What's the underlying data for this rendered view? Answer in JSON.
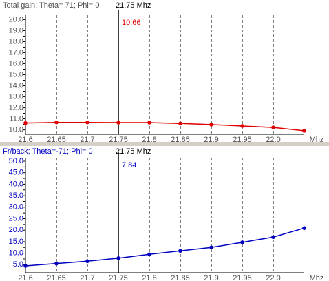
{
  "chart_data": [
    {
      "type": "line",
      "title": "Total gain; Theta= 71; Phi= 0",
      "marker": {
        "x": 21.75,
        "text": "21.75 Mhz",
        "value": 10.66
      },
      "x_unit": "Mhz",
      "x": [
        21.6,
        21.65,
        21.7,
        21.75,
        21.8,
        21.85,
        21.9,
        21.95,
        22.0,
        22.05
      ],
      "series": [
        {
          "name": "Total gain",
          "color": "#e00000",
          "values": [
            10.62,
            10.68,
            10.68,
            10.66,
            10.66,
            10.58,
            10.48,
            10.35,
            10.22,
            9.92
          ]
        }
      ],
      "label_color": "#505050",
      "xlim": [
        21.6,
        22.05
      ],
      "xticks": [
        21.6,
        21.65,
        21.7,
        21.75,
        21.8,
        21.85,
        21.9,
        21.95,
        {
          "value": 22,
          "label": "22.0"
        }
      ],
      "ylim": [
        9.6,
        20.4
      ],
      "yticks": [
        {
          "value": 10,
          "label": "10.0"
        },
        10.5,
        {
          "value": 11,
          "label": "11.0"
        },
        11.5,
        {
          "value": 12,
          "label": "12.0"
        },
        12.5,
        {
          "value": 13,
          "label": "13.0"
        },
        13.5,
        {
          "value": 14,
          "label": "14.0"
        },
        14.5,
        {
          "value": 15,
          "label": "15.0"
        },
        15.5,
        {
          "value": 16,
          "label": "16.0"
        },
        16.5,
        {
          "value": 17,
          "label": "17.0"
        },
        17.5,
        {
          "value": 18,
          "label": "18.0"
        },
        18.5,
        {
          "value": 19,
          "label": "19.0"
        },
        19.5,
        {
          "value": 20,
          "label": "20.0"
        }
      ],
      "grid": true
    },
    {
      "type": "line",
      "title": "Fr/back; Theta=-71; Phi= 0",
      "marker": {
        "x": 21.75,
        "text": "21.75 Mhz",
        "value": 7.84
      },
      "x_unit": "Mhz",
      "x": [
        21.6,
        21.65,
        21.7,
        21.75,
        21.8,
        21.85,
        21.9,
        21.95,
        22.0,
        22.05
      ],
      "series": [
        {
          "name": "Fr/back",
          "color": "#0000c0",
          "values": [
            4.5,
            5.5,
            6.5,
            7.84,
            9.5,
            11.0,
            12.5,
            14.7,
            17.0,
            20.9
          ]
        }
      ],
      "label_color": "#0000c0",
      "xlim": [
        21.6,
        22.05
      ],
      "xticks": [
        21.6,
        21.65,
        21.7,
        21.75,
        21.8,
        21.85,
        21.9,
        21.95,
        {
          "value": 22,
          "label": "22.0"
        }
      ],
      "ylim": [
        1.5,
        51.5
      ],
      "yticks": [
        {
          "value": 5,
          "label": "5.0"
        },
        7.5,
        {
          "value": 10,
          "label": "10.0"
        },
        12.5,
        {
          "value": 15,
          "label": "15.0"
        },
        17.5,
        {
          "value": 20,
          "label": "20.0"
        },
        22.5,
        {
          "value": 25,
          "label": "25.0"
        },
        27.5,
        {
          "value": 30,
          "label": "30.0"
        },
        32.5,
        {
          "value": 35,
          "label": "35.0"
        },
        37.5,
        {
          "value": 40,
          "label": "40.0"
        },
        42.5,
        {
          "value": 45,
          "label": "45.0"
        },
        47.5,
        {
          "value": 50,
          "label": "50.0"
        }
      ],
      "grid": true
    }
  ]
}
